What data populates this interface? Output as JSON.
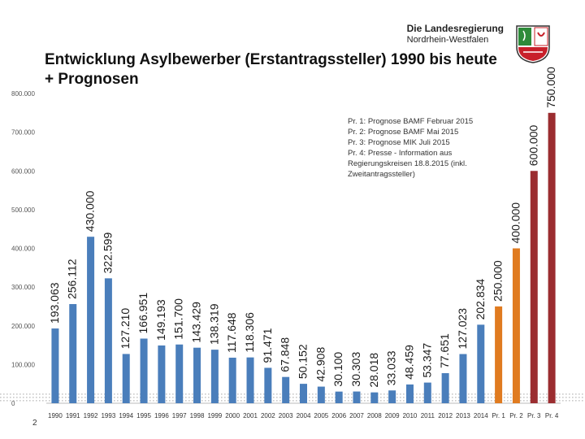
{
  "header": {
    "title": "Entwicklung Asylbewerber (Erstantragssteller) 1990 bis heute + Prognosen",
    "logo_line1": "Die Landesregierung",
    "logo_line2": "Nordrhein-Westfalen",
    "crest_icon": "nrw-crest-icon"
  },
  "page_number": "2",
  "legend_notes": [
    "Pr. 1: Prognose BAMF Februar 2015",
    "Pr. 2: Prognose BAMF Mai 2015",
    "Pr. 3: Prognose MIK Juli 2015",
    "Pr. 4: Presse - Information aus Regierungskreisen 18.8.2015 (inkl. Zweitantragssteller)"
  ],
  "colors": {
    "historic": "#4a7ebb",
    "prognose_orange": "#e07b20",
    "prognose_red": "#9b2d30",
    "crest_green": "#2e8b3a",
    "crest_red": "#c8202a"
  },
  "chart_data": {
    "type": "bar",
    "title": "Entwicklung Asylbewerber (Erstantragssteller) 1990 bis heute + Prognosen",
    "xlabel": "",
    "ylabel": "",
    "ylim": [
      0,
      800000
    ],
    "yticks": [
      0,
      100000,
      200000,
      300000,
      400000,
      500000,
      600000,
      700000,
      800000
    ],
    "ytick_labels": [
      "0",
      "100.000",
      "200.000",
      "300.000",
      "400.000",
      "500.000",
      "600.000",
      "700.000",
      "800.000"
    ],
    "grid": false,
    "categories": [
      "1990",
      "1991",
      "1992",
      "1993",
      "1994",
      "1995",
      "1996",
      "1997",
      "1998",
      "1999",
      "2000",
      "2001",
      "2002",
      "2003",
      "2004",
      "2005",
      "2006",
      "2007",
      "2008",
      "2009",
      "2010",
      "2011",
      "2012",
      "2013",
      "2014",
      "Pr. 1",
      "Pr. 2",
      "Pr. 3",
      "Pr. 4"
    ],
    "values": [
      193063,
      256112,
      430000,
      322599,
      127210,
      166951,
      149193,
      151700,
      143429,
      138319,
      117648,
      118306,
      91471,
      67848,
      50152,
      42908,
      30100,
      30303,
      28018,
      33033,
      48459,
      53347,
      77651,
      127023,
      202834,
      250000,
      400000,
      600000,
      750000
    ],
    "value_labels": [
      "193.063",
      "256.112",
      "430.000",
      "322.599",
      "127.210",
      "166.951",
      "149.193",
      "151.700",
      "143.429",
      "138.319",
      "117.648",
      "118.306",
      "91.471",
      "67.848",
      "50.152",
      "42.908",
      "30.100",
      "30.303",
      "28.018",
      "33.033",
      "48.459",
      "53.347",
      "77.651",
      "127.023",
      "202.834",
      "250.000",
      "400.000",
      "600.000",
      "750.000"
    ],
    "bar_groups": [
      "historic",
      "historic",
      "historic",
      "historic",
      "historic",
      "historic",
      "historic",
      "historic",
      "historic",
      "historic",
      "historic",
      "historic",
      "historic",
      "historic",
      "historic",
      "historic",
      "historic",
      "historic",
      "historic",
      "historic",
      "historic",
      "historic",
      "historic",
      "historic",
      "historic",
      "prognose_orange",
      "prognose_orange",
      "prognose_red",
      "prognose_red"
    ]
  }
}
